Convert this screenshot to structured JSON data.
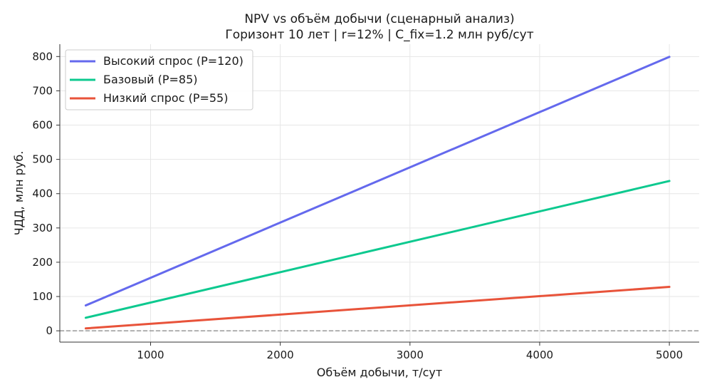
{
  "chart_data": {
    "type": "line",
    "title": "NPV vs объём добычи (сценарный анализ)",
    "subtitle": "Горизонт 10 лет | r=12% | C_fix=1.2 млн руб/сут",
    "xlabel": "Объём добычи, т/сут",
    "ylabel": "ЧДД, млн руб.",
    "xlim": [
      300,
      5230
    ],
    "ylim": [
      -33,
      836
    ],
    "xticks": [
      1000,
      2000,
      3000,
      4000,
      5000
    ],
    "yticks": [
      0,
      100,
      200,
      300,
      400,
      500,
      600,
      700,
      800
    ],
    "grid": true,
    "legend_position": "top-left",
    "zero_line": {
      "y": 0,
      "color": "#999999",
      "style": "dashed"
    },
    "series": [
      {
        "name": "Высокий спрос (P=120)",
        "color": "#6469ed",
        "x": [
          500,
          5000
        ],
        "y": [
          74,
          799
        ]
      },
      {
        "name": "Базовый (P=85)",
        "color": "#0dc98f",
        "x": [
          500,
          5000
        ],
        "y": [
          38,
          437
        ]
      },
      {
        "name": "Низкий спрос (P=55)",
        "color": "#e8533a",
        "x": [
          500,
          5000
        ],
        "y": [
          7,
          128
        ]
      }
    ]
  }
}
